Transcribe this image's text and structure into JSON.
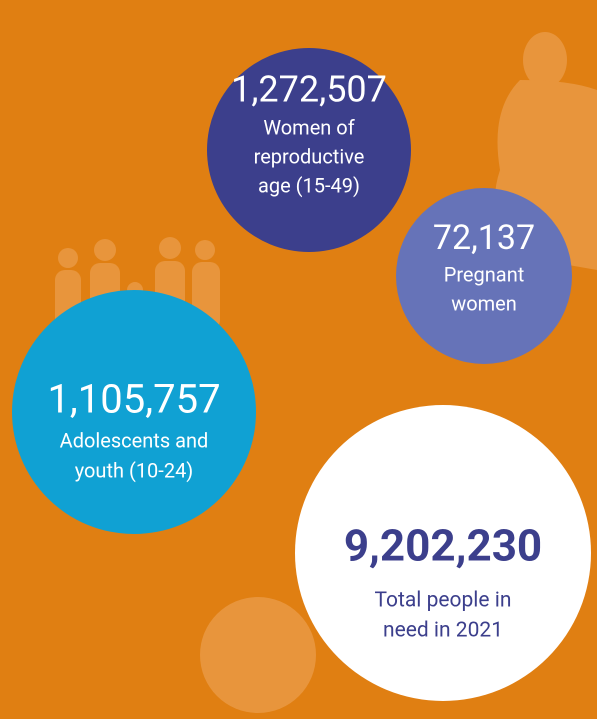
{
  "bubbles": [
    {
      "number": "1,272,507",
      "lines": [
        "Women of",
        "reproductive",
        "age (15-49)"
      ]
    },
    {
      "number": "72,137",
      "lines": [
        "Pregnant",
        "women"
      ]
    },
    {
      "number": "1,105,757",
      "lines": [
        "Adolescents and",
        "youth (10-24)"
      ]
    },
    {
      "number": "9,202,230",
      "lines": [
        "Total people in",
        "need in 2021"
      ]
    }
  ]
}
